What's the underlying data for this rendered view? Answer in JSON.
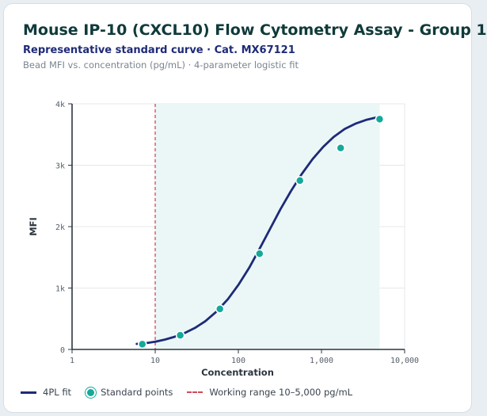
{
  "header": {
    "title": "Mouse IP-10 (CXCL10) Flow Cytometry Assay - Group 1",
    "subtitle": "Representative standard curve · Cat. MX67121",
    "note": "Bead MFI vs. concentration (pg/mL) · 4-parameter logistic fit"
  },
  "colors": {
    "curve": "#1e2a78",
    "points": "#14a99a",
    "working_range_fill": "#eaf7f6",
    "lod_line": "#d14a5a",
    "grid": "#e4e8ec"
  },
  "chart_data": {
    "type": "scatter",
    "x_scale": "log",
    "xlabel": "Concentration",
    "ylabel": "MFI",
    "xlim": [
      1,
      10000
    ],
    "ylim": [
      0,
      4000
    ],
    "x_ticks": [
      1,
      10,
      100,
      1000,
      10000
    ],
    "x_tick_labels": [
      "1",
      "10",
      "100",
      "1,000",
      "10,000"
    ],
    "y_ticks": [
      0,
      1000,
      2000,
      3000,
      4000
    ],
    "y_tick_labels": [
      "0",
      "1k",
      "2k",
      "3k",
      "4k"
    ],
    "grid": true,
    "legend_position": "bottom-left",
    "series": [
      {
        "name": "4PL fit",
        "kind": "line",
        "x": [
          6.0,
          7.5,
          10,
          13,
          17,
          22,
          30,
          40,
          55,
          75,
          100,
          135,
          180,
          240,
          320,
          430,
          580,
          780,
          1050,
          1400,
          1900,
          2600,
          3500,
          5000
        ],
        "y": [
          90,
          100,
          125,
          160,
          205,
          260,
          350,
          460,
          620,
          820,
          1050,
          1330,
          1640,
          1960,
          2280,
          2580,
          2860,
          3100,
          3300,
          3460,
          3590,
          3680,
          3740,
          3790
        ]
      },
      {
        "name": "Standard points",
        "kind": "scatter",
        "x": [
          7,
          20,
          60,
          180,
          550,
          1700,
          5000
        ],
        "y": [
          85,
          230,
          660,
          1560,
          2750,
          3280,
          3750
        ]
      }
    ],
    "working_range": {
      "label": "Working range 10–5,000 pg/mL",
      "x_min": 10,
      "x_max": 5000
    }
  },
  "legend": {
    "fit_label": "4PL fit",
    "points_label": "Standard points",
    "range_label": "Working range 10–5,000 pg/mL"
  }
}
